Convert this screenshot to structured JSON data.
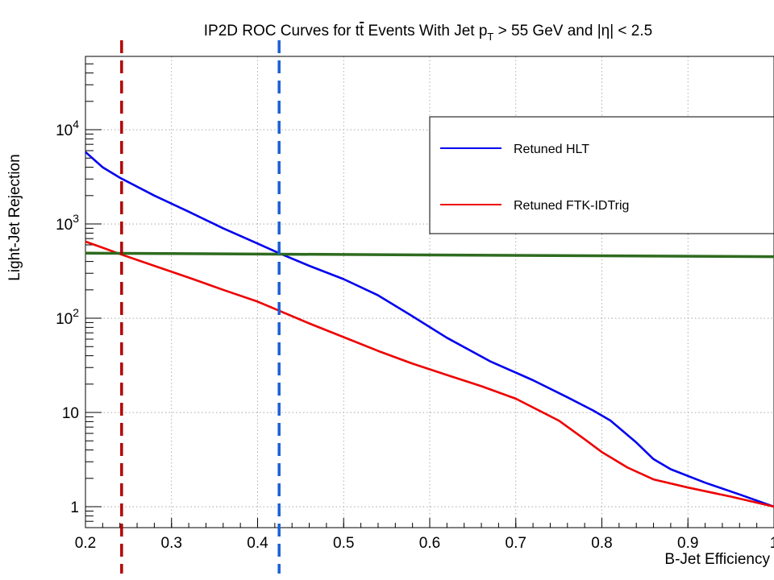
{
  "chart_data": {
    "type": "line",
    "title": {
      "prefix": "IP2D ROC Curves for t",
      "tbar": "t",
      "mid": " Events With Jet p",
      "sub": "T",
      "suffix": " > 55 GeV and |η| < 2.5"
    },
    "xlabel": "B-Jet Efficiency",
    "ylabel": "Light-Jet Rejection",
    "xlim": [
      0.2,
      1.0
    ],
    "ylim": [
      0.6,
      60000
    ],
    "yscale": "log",
    "grid": true,
    "legend_position": "top-right",
    "x_ticks": [
      {
        "value": 0.2,
        "label": "0.2"
      },
      {
        "value": 0.3,
        "label": "0.3"
      },
      {
        "value": 0.4,
        "label": "0.4"
      },
      {
        "value": 0.5,
        "label": "0.5"
      },
      {
        "value": 0.6,
        "label": "0.6"
      },
      {
        "value": 0.7,
        "label": "0.7"
      },
      {
        "value": 0.8,
        "label": "0.8"
      },
      {
        "value": 0.9,
        "label": "0.9"
      },
      {
        "value": 1.0,
        "label": "1"
      }
    ],
    "y_ticks": [
      {
        "value": 1,
        "base": "1",
        "exp": ""
      },
      {
        "value": 10,
        "base": "10",
        "exp": ""
      },
      {
        "value": 100,
        "base": "10",
        "exp": "2"
      },
      {
        "value": 1000,
        "base": "10",
        "exp": "3"
      },
      {
        "value": 10000,
        "base": "10",
        "exp": "4"
      }
    ],
    "series": [
      {
        "name": "Retuned HLT",
        "color": "#0000ee",
        "x": [
          0.2,
          0.22,
          0.24,
          0.28,
          0.32,
          0.36,
          0.4,
          0.425,
          0.46,
          0.5,
          0.54,
          0.58,
          0.62,
          0.67,
          0.72,
          0.76,
          0.79,
          0.81,
          0.84,
          0.86,
          0.88,
          0.92,
          0.96,
          1.0
        ],
        "y": [
          5800,
          4000,
          3100,
          2000,
          1350,
          900,
          620,
          490,
          360,
          260,
          175,
          105,
          62,
          35,
          22,
          14.5,
          10.5,
          8.2,
          4.8,
          3.2,
          2.5,
          1.8,
          1.35,
          1.0
        ]
      },
      {
        "name": "Retuned FTK-IDTrig",
        "color": "#ee0000",
        "x": [
          0.2,
          0.22,
          0.24,
          0.28,
          0.32,
          0.36,
          0.4,
          0.43,
          0.46,
          0.5,
          0.54,
          0.58,
          0.62,
          0.66,
          0.7,
          0.75,
          0.78,
          0.8,
          0.83,
          0.86,
          0.9,
          0.95,
          1.0
        ],
        "y": [
          650,
          560,
          480,
          360,
          270,
          200,
          150,
          115,
          88,
          63,
          45,
          33,
          25,
          19,
          14,
          8.2,
          5.2,
          3.8,
          2.6,
          1.95,
          1.6,
          1.28,
          1.0
        ]
      }
    ],
    "reference_lines": [
      {
        "kind": "horizontal",
        "color": "#2e6b1f",
        "x": [
          0.2,
          1.02
        ],
        "y": [
          490,
          450
        ]
      },
      {
        "kind": "vertical",
        "color": "#b30000",
        "x": 0.242
      },
      {
        "kind": "vertical",
        "color": "#1a5fd6",
        "x": 0.425
      }
    ]
  }
}
